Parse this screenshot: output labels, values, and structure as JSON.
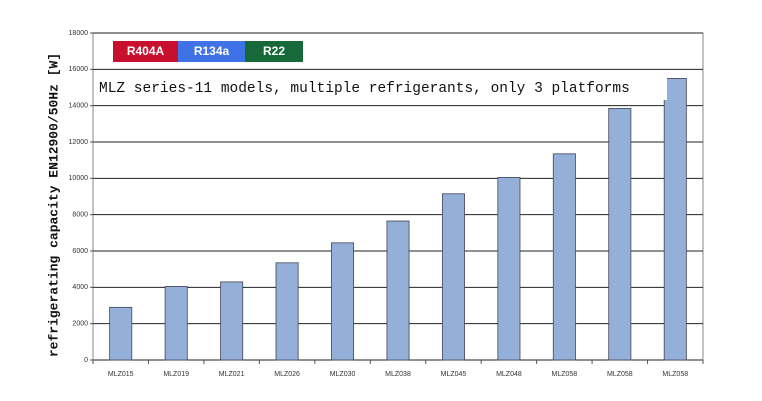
{
  "chart_data": {
    "type": "bar",
    "ylabel": "refrigerating capacity EN12900/50Hz [W]",
    "annotation": "MLZ series-11 models, multiple refrigerants, only 3 platforms",
    "legend": [
      {
        "label": "R404A",
        "color": "#c8102e"
      },
      {
        "label": "R134a",
        "color": "#3f72e6"
      },
      {
        "label": "R22",
        "color": "#17693a"
      }
    ],
    "categories": [
      "MLZ015",
      "MLZ019",
      "MLZ021",
      "MLZ026",
      "MLZ030",
      "MLZ038",
      "MLZ045",
      "MLZ048",
      "MLZ058",
      "MLZ058",
      "MLZ058"
    ],
    "values": [
      2900,
      4050,
      4300,
      5350,
      6450,
      7650,
      9150,
      10050,
      11350,
      13850,
      15500
    ],
    "color": "#94b0d8",
    "ylim": [
      0,
      18000
    ],
    "yticks": [
      0,
      2000,
      4000,
      6000,
      8000,
      10000,
      12000,
      14000,
      16000,
      18000
    ],
    "grid": true
  }
}
